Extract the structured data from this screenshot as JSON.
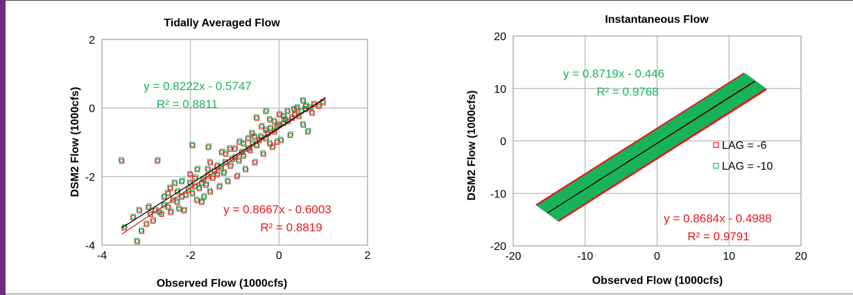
{
  "colors": {
    "red": "#e8151b",
    "green": "#16b35a",
    "fit": "#000000",
    "grid": "#a6a6a6"
  },
  "chart_data": [
    {
      "type": "scatter",
      "title": "Tidally Averaged Flow",
      "xlabel": "Observed Flow (1000cfs)",
      "ylabel": "DSM2 Flow (1000cfs)",
      "xlim": [
        -4,
        2
      ],
      "ylim": [
        -4,
        2
      ],
      "xticks": [
        "-4",
        "-2",
        "0",
        "2"
      ],
      "yticks": [
        "-4",
        "-2",
        "0",
        "2"
      ],
      "grid": true,
      "series": [
        {
          "color": "red",
          "slope": 0.8667,
          "intercept": -0.6003,
          "equation": "y = 0.8667x - 0.6003",
          "r2": "R² = 0.8819"
        },
        {
          "color": "green",
          "slope": 0.8222,
          "intercept": -0.5747,
          "equation": "y = 0.8222x - 0.5747",
          "r2": "R² = 0.8811"
        }
      ],
      "points": [
        [
          -3.55,
          -1.55
        ],
        [
          -2.75,
          -1.55
        ],
        [
          -1.95,
          -1.1
        ],
        [
          -1.6,
          -1.15
        ],
        [
          -3.2,
          -3.9
        ],
        [
          -3.5,
          -3.5
        ],
        [
          -3.1,
          -3.6
        ],
        [
          -3.0,
          -3.4
        ],
        [
          -2.9,
          -3.1
        ],
        [
          -2.8,
          -3.0
        ],
        [
          -2.7,
          -3.05
        ],
        [
          -2.6,
          -2.85
        ],
        [
          -2.5,
          -2.9
        ],
        [
          -2.4,
          -2.7
        ],
        [
          -2.3,
          -2.75
        ],
        [
          -2.2,
          -2.6
        ],
        [
          -2.1,
          -2.55
        ],
        [
          -2.05,
          -2.4
        ],
        [
          -1.95,
          -2.5
        ],
        [
          -1.9,
          -2.3
        ],
        [
          -1.8,
          -2.35
        ],
        [
          -1.75,
          -2.2
        ],
        [
          -1.7,
          -2.1
        ],
        [
          -1.65,
          -2.25
        ],
        [
          -1.6,
          -2.0
        ],
        [
          -1.5,
          -2.05
        ],
        [
          -1.45,
          -1.85
        ],
        [
          -1.4,
          -1.95
        ],
        [
          -1.3,
          -1.75
        ],
        [
          -1.25,
          -1.9
        ],
        [
          -1.2,
          -1.6
        ],
        [
          -1.1,
          -1.7
        ],
        [
          -1.05,
          -1.5
        ],
        [
          -1.0,
          -1.45
        ],
        [
          -0.9,
          -1.55
        ],
        [
          -0.85,
          -1.3
        ],
        [
          -0.8,
          -1.4
        ],
        [
          -0.7,
          -1.2
        ],
        [
          -0.65,
          -1.25
        ],
        [
          -0.6,
          -1.05
        ],
        [
          -0.5,
          -1.1
        ],
        [
          -0.45,
          -0.95
        ],
        [
          -0.4,
          -0.85
        ],
        [
          -0.3,
          -0.9
        ],
        [
          -0.25,
          -0.75
        ],
        [
          -0.2,
          -0.6
        ],
        [
          -0.1,
          -0.7
        ],
        [
          -0.05,
          -0.55
        ],
        [
          0.0,
          -0.5
        ],
        [
          0.1,
          -0.45
        ],
        [
          0.15,
          -0.35
        ],
        [
          0.2,
          -0.4
        ],
        [
          0.3,
          -0.3
        ],
        [
          0.35,
          -0.2
        ],
        [
          0.45,
          -0.25
        ],
        [
          0.5,
          -0.1
        ],
        [
          0.6,
          -0.05
        ],
        [
          0.7,
          0.0
        ],
        [
          0.8,
          0.1
        ],
        [
          0.9,
          0.05
        ],
        [
          1.0,
          0.15
        ],
        [
          -2.85,
          -3.3
        ],
        [
          -2.65,
          -3.1
        ],
        [
          -2.45,
          -3.05
        ],
        [
          -2.25,
          -2.95
        ],
        [
          -2.15,
          -3.0
        ],
        [
          -1.85,
          -2.7
        ],
        [
          -1.7,
          -2.6
        ],
        [
          -1.55,
          -2.45
        ],
        [
          -1.35,
          -2.3
        ],
        [
          -1.15,
          -2.15
        ],
        [
          -0.95,
          -2.0
        ],
        [
          -0.75,
          -1.8
        ],
        [
          -0.55,
          -1.6
        ],
        [
          -0.35,
          -1.35
        ],
        [
          -0.15,
          -1.15
        ],
        [
          0.05,
          -0.95
        ],
        [
          0.25,
          -0.8
        ],
        [
          -2.35,
          -2.2
        ],
        [
          -2.2,
          -2.15
        ],
        [
          -2.0,
          -1.95
        ],
        [
          -1.85,
          -1.8
        ],
        [
          -1.55,
          -1.6
        ],
        [
          -1.3,
          -1.3
        ],
        [
          -1.1,
          -1.2
        ],
        [
          -0.9,
          -1.0
        ],
        [
          -0.6,
          -0.75
        ],
        [
          -0.4,
          -0.55
        ],
        [
          -0.2,
          -0.35
        ],
        [
          0.0,
          -0.2
        ],
        [
          0.2,
          -0.1
        ],
        [
          0.4,
          0.0
        ],
        [
          0.55,
          -0.5
        ],
        [
          0.65,
          -0.7
        ],
        [
          -0.5,
          -0.3
        ],
        [
          -0.3,
          -0.1
        ],
        [
          -2.5,
          -2.5
        ],
        [
          -2.6,
          -2.6
        ],
        [
          -2.45,
          -2.35
        ],
        [
          -2.3,
          -2.45
        ],
        [
          -2.0,
          -2.2
        ],
        [
          -1.9,
          -2.05
        ],
        [
          -1.6,
          -1.8
        ],
        [
          -1.4,
          -1.7
        ],
        [
          -1.2,
          -1.35
        ],
        [
          -1.0,
          -1.2
        ],
        [
          -0.8,
          -1.05
        ],
        [
          -0.7,
          -0.9
        ],
        [
          -0.55,
          -0.85
        ],
        [
          -0.3,
          -0.65
        ],
        [
          -0.1,
          -0.4
        ],
        [
          0.1,
          -0.25
        ],
        [
          0.35,
          -0.05
        ],
        [
          0.6,
          0.05
        ],
        [
          0.75,
          -0.15
        ],
        [
          -3.3,
          -3.2
        ],
        [
          -3.15,
          -3.0
        ],
        [
          -2.95,
          -2.9
        ],
        [
          0.55,
          0.2
        ],
        [
          -0.05,
          -1.0
        ],
        [
          -0.2,
          -1.05
        ],
        [
          -1.75,
          -2.75
        ]
      ]
    },
    {
      "type": "scatter",
      "title": "Instantaneous Flow",
      "xlabel": "Observed Flow (1000cfs)",
      "ylabel": "DSM2 Flow (1000cfs)",
      "xlim": [
        -20,
        20
      ],
      "ylim": [
        -20,
        20
      ],
      "xticks": [
        "-20",
        "-10",
        "0",
        "10",
        "20"
      ],
      "yticks": [
        "-20",
        "-10",
        "0",
        "10",
        "20"
      ],
      "grid": true,
      "legend": {
        "position": "right",
        "entries": [
          "LAG = -6",
          "LAG = -10"
        ]
      },
      "series": [
        {
          "name": "LAG = -6",
          "color": "red",
          "slope": 0.8684,
          "intercept": -0.4988,
          "equation": "y = 0.8684x - 0.4988",
          "r2": "R² = 0.9791"
        },
        {
          "name": "LAG = -10",
          "color": "green",
          "slope": 0.8719,
          "intercept": -0.446,
          "equation": "y = 0.8719x - 0.446",
          "r2": "R² = 0.9768"
        }
      ]
    }
  ]
}
